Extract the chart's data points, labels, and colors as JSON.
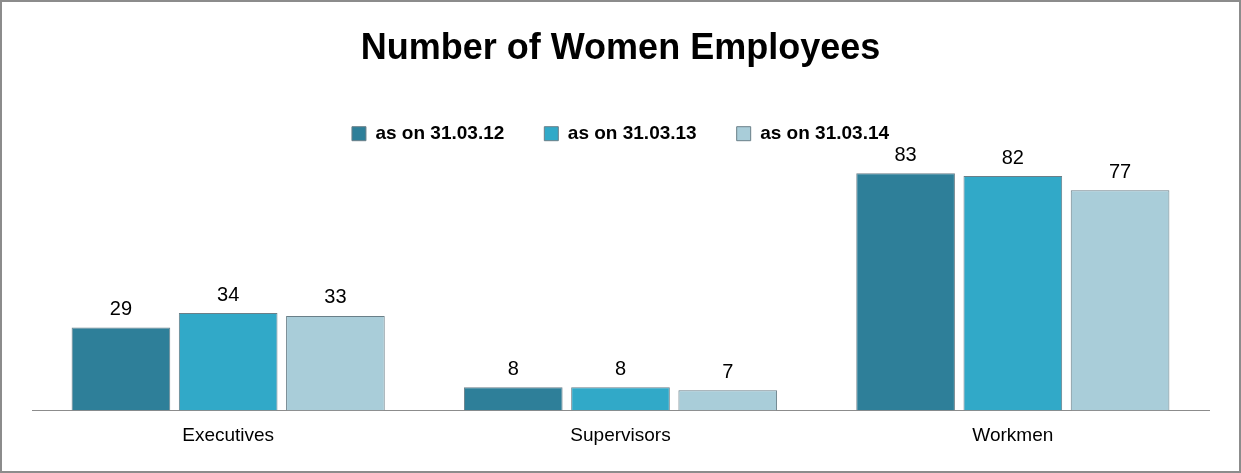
{
  "chart_data": {
    "type": "bar",
    "title": "Number of Women Employees",
    "categories": [
      "Executives",
      "Supervisors",
      "Workmen"
    ],
    "series": [
      {
        "name": "as on 31.03.12",
        "color": "#2e7f99",
        "values": [
          29,
          8,
          83
        ]
      },
      {
        "name": "as on 31.03.13",
        "color": "#31a9c8",
        "values": [
          34,
          8,
          82
        ]
      },
      {
        "name": "as on 31.03.14",
        "color": "#a9cdd9",
        "values": [
          33,
          7,
          77
        ]
      }
    ],
    "data_labels": true,
    "legend": "top",
    "grid": false
  }
}
